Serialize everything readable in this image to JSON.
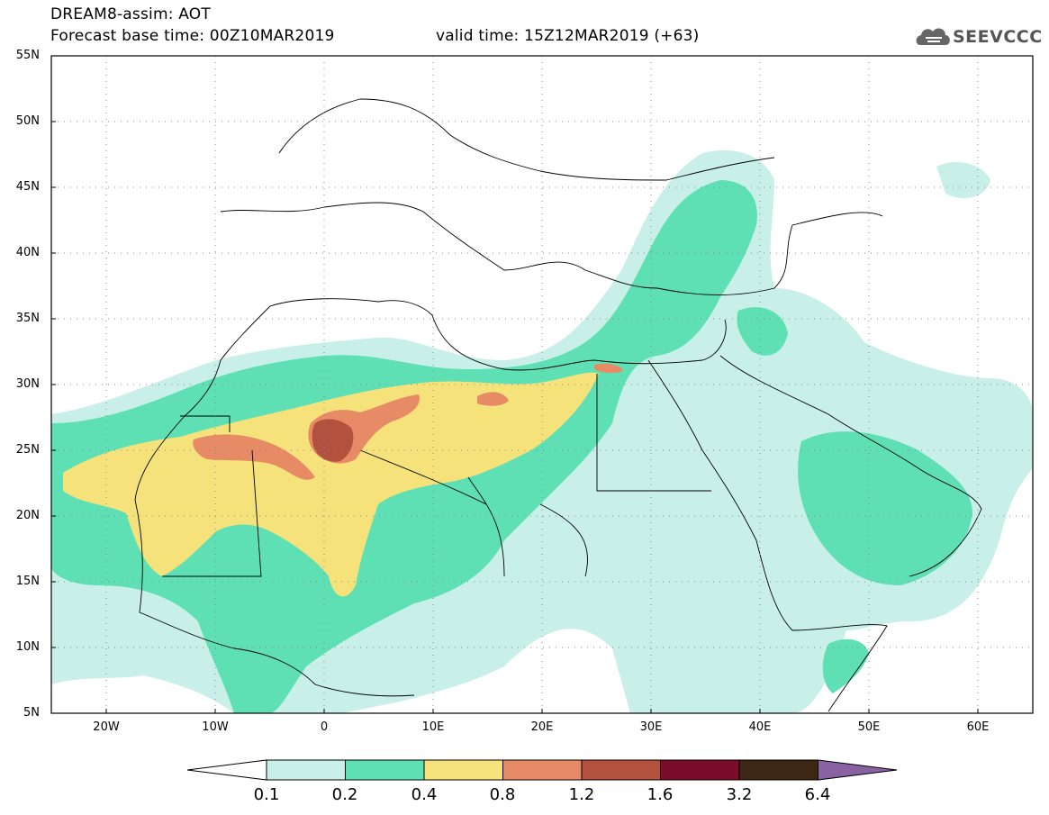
{
  "title": {
    "line1": "DREAM8-assim: AOT",
    "line2": "Forecast base time: 00Z10MAR2019",
    "valid": "valid time: 15Z12MAR2019 (+63)"
  },
  "logo": {
    "text": "SEEVCCC"
  },
  "map": {
    "lat_ticks": [
      "55N",
      "50N",
      "45N",
      "40N",
      "35N",
      "30N",
      "25N",
      "20N",
      "15N",
      "10N",
      "5N"
    ],
    "lon_ticks": [
      "20W",
      "10W",
      "0",
      "10E",
      "20E",
      "30E",
      "40E",
      "50E",
      "60E"
    ],
    "lat_range": [
      5,
      55
    ],
    "lon_range": [
      -25,
      65
    ],
    "grid": "dotted"
  },
  "colorbar": {
    "labels": [
      "0.1",
      "0.2",
      "0.4",
      "0.8",
      "1.2",
      "1.6",
      "3.2",
      "6.4"
    ],
    "colors": [
      "#c8f0e8",
      "#5ee0b4",
      "#f5e27a",
      "#e78a66",
      "#b3513f",
      "#7a0d2a",
      "#3d2614",
      "#8a62a3"
    ]
  }
}
